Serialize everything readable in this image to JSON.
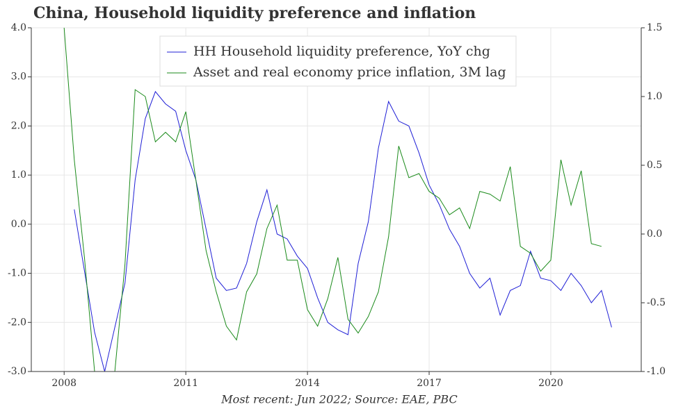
{
  "chart_data": {
    "type": "line",
    "title": "China, Household liquidity preference and inflation",
    "note": "Most recent: Jun 2022; Source: EAE, PBC",
    "x": [
      2008.0,
      2008.25,
      2008.5,
      2008.75,
      2009.0,
      2009.25,
      2009.5,
      2009.75,
      2010.0,
      2010.25,
      2010.5,
      2010.75,
      2011.0,
      2011.25,
      2011.5,
      2011.75,
      2012.0,
      2012.25,
      2012.5,
      2012.75,
      2013.0,
      2013.25,
      2013.5,
      2013.75,
      2014.0,
      2014.25,
      2014.5,
      2014.75,
      2015.0,
      2015.25,
      2015.5,
      2015.75,
      2016.0,
      2016.25,
      2016.5,
      2016.75,
      2017.0,
      2017.25,
      2017.5,
      2017.75,
      2018.0,
      2018.25,
      2018.5,
      2018.75,
      2019.0,
      2019.25,
      2019.5,
      2019.75,
      2020.0,
      2020.25,
      2020.5,
      2020.75,
      2021.0,
      2021.25,
      2021.5
    ],
    "series": [
      {
        "name": "HH Household liquidity preference, YoY chg",
        "color": "#1f1fd6",
        "values": [
          null,
          0.3,
          -0.95,
          -2.2,
          -3.0,
          -2.1,
          -1.2,
          0.9,
          2.15,
          2.7,
          2.45,
          2.3,
          1.5,
          0.9,
          -0.1,
          -1.1,
          -1.35,
          -1.3,
          -0.8,
          0.05,
          0.7,
          -0.2,
          -0.3,
          -0.65,
          -0.9,
          -1.5,
          -2.0,
          -2.15,
          -2.25,
          -0.8,
          0.05,
          1.55,
          2.5,
          2.1,
          2.0,
          1.45,
          0.8,
          0.4,
          -0.1,
          -0.45,
          -1.0,
          -1.3,
          -1.1,
          -1.85,
          -1.35,
          -1.25,
          -0.55,
          -1.1,
          -1.15,
          -1.35,
          -1.0,
          -1.25,
          -1.6,
          -1.35,
          -2.1
        ]
      },
      {
        "name": "Asset and real economy price inflation, 3M lag",
        "color": "#1a8a1a",
        "axis": "y2",
        "values": [
          1.5,
          0.54,
          -0.17,
          -1.0,
          -1.0,
          -1.0,
          -0.22,
          1.05,
          1.0,
          0.67,
          0.74,
          0.67,
          0.89,
          0.39,
          -0.12,
          -0.42,
          -0.67,
          -0.77,
          -0.42,
          -0.29,
          0.04,
          0.21,
          -0.19,
          -0.19,
          -0.55,
          -0.67,
          -0.47,
          -0.17,
          -0.62,
          -0.72,
          -0.6,
          -0.42,
          -0.02,
          0.64,
          0.41,
          0.44,
          0.31,
          0.26,
          0.14,
          0.19,
          0.04,
          0.31,
          0.29,
          0.24,
          0.49,
          -0.09,
          -0.14,
          -0.27,
          -0.19,
          0.54,
          0.21,
          0.46,
          -0.07,
          -0.09,
          null
        ]
      }
    ],
    "xlim": [
      2007.19,
      2022.23
    ],
    "xticks": [
      2008,
      2011,
      2014,
      2017,
      2020
    ],
    "ylim": [
      -3,
      4
    ],
    "yticks": [
      {
        "value": -3,
        "label": "-3.0"
      },
      {
        "value": -2,
        "label": "-2.0"
      },
      {
        "value": -1,
        "label": "-1.0"
      },
      {
        "value": 0,
        "label": "0.0"
      },
      {
        "value": 1,
        "label": "1.0"
      },
      {
        "value": 2,
        "label": "2.0"
      },
      {
        "value": 3,
        "label": "3.0"
      },
      {
        "value": 4,
        "label": "4.0"
      }
    ],
    "y2lim": [
      -1,
      1.5
    ],
    "y2ticks": [
      {
        "value": -1,
        "label": "-1.0"
      },
      -0.5,
      {
        "value": 0,
        "label": "0.0"
      },
      0.5,
      {
        "value": 1,
        "label": "1.0"
      },
      1.5
    ],
    "grid": true
  }
}
